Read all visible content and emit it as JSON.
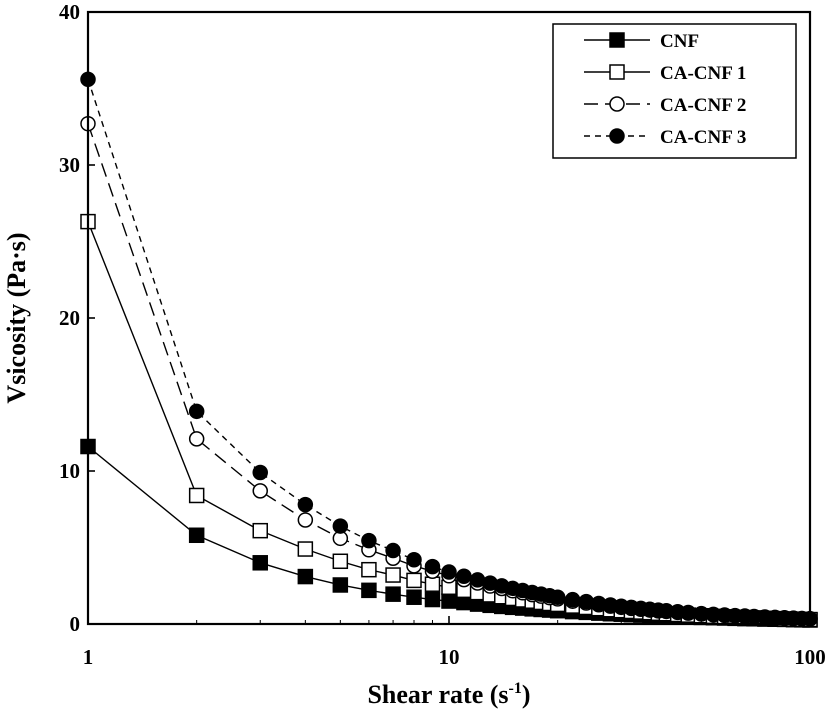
{
  "chart_data": {
    "type": "line",
    "xscale": "log",
    "xlabel": "Shear rate (s",
    "xlabel_sup": "-1",
    "xlabel_close": ")",
    "ylabel": "Vsicosity (Pa·s)",
    "xlim": [
      1,
      100
    ],
    "ylim": [
      0,
      40
    ],
    "x_ticks": [
      1,
      10,
      100
    ],
    "x_tick_labels": [
      "1",
      "10",
      "100"
    ],
    "y_ticks": [
      0,
      10,
      20,
      30,
      40
    ],
    "y_tick_labels": [
      "0",
      "10",
      "20",
      "30",
      "40"
    ],
    "legend_position": "top-right",
    "x": [
      1,
      2,
      3,
      4,
      5,
      6,
      7,
      8,
      9,
      10,
      11,
      12,
      13,
      14,
      15,
      16,
      17,
      18,
      19,
      20,
      22,
      24,
      26,
      28,
      30,
      32,
      34,
      36,
      38,
      40,
      43,
      46,
      50,
      54,
      58,
      62,
      66,
      70,
      75,
      80,
      85,
      90,
      95,
      100
    ],
    "series": [
      {
        "name": "CNF",
        "marker": "filled-square",
        "line": "solid",
        "values": [
          11.6,
          5.8,
          4.0,
          3.1,
          2.55,
          2.2,
          1.95,
          1.75,
          1.6,
          1.5,
          1.4,
          1.3,
          1.22,
          1.15,
          1.09,
          1.04,
          0.99,
          0.95,
          0.91,
          0.87,
          0.81,
          0.76,
          0.71,
          0.67,
          0.64,
          0.61,
          0.58,
          0.56,
          0.53,
          0.51,
          0.49,
          0.46,
          0.43,
          0.41,
          0.39,
          0.37,
          0.35,
          0.34,
          0.32,
          0.31,
          0.3,
          0.28,
          0.27,
          0.26
        ]
      },
      {
        "name": "CA-CNF 1",
        "marker": "open-square",
        "line": "solid",
        "values": [
          26.3,
          8.4,
          6.1,
          4.9,
          4.1,
          3.55,
          3.2,
          2.85,
          2.6,
          2.4,
          2.2,
          2.05,
          1.9,
          1.78,
          1.67,
          1.57,
          1.49,
          1.41,
          1.34,
          1.28,
          1.17,
          1.08,
          1.0,
          0.93,
          0.87,
          0.82,
          0.78,
          0.74,
          0.7,
          0.67,
          0.62,
          0.58,
          0.54,
          0.5,
          0.47,
          0.44,
          0.42,
          0.4,
          0.37,
          0.35,
          0.33,
          0.32,
          0.3,
          0.29
        ]
      },
      {
        "name": "CA-CNF 2",
        "marker": "open-circle",
        "line": "long-dash",
        "values": [
          32.7,
          12.1,
          8.7,
          6.8,
          5.6,
          4.85,
          4.3,
          3.8,
          3.45,
          3.15,
          2.9,
          2.68,
          2.48,
          2.32,
          2.17,
          2.04,
          1.92,
          1.82,
          1.72,
          1.64,
          1.49,
          1.37,
          1.26,
          1.17,
          1.09,
          1.02,
          0.96,
          0.91,
          0.86,
          0.82,
          0.76,
          0.71,
          0.65,
          0.6,
          0.56,
          0.53,
          0.5,
          0.47,
          0.44,
          0.41,
          0.39,
          0.37,
          0.35,
          0.33
        ]
      },
      {
        "name": "CA-CNF 3",
        "marker": "filled-circle",
        "line": "short-dash",
        "values": [
          35.6,
          13.9,
          9.9,
          7.8,
          6.4,
          5.45,
          4.8,
          4.2,
          3.75,
          3.4,
          3.12,
          2.88,
          2.67,
          2.49,
          2.33,
          2.19,
          2.06,
          1.95,
          1.85,
          1.75,
          1.59,
          1.46,
          1.34,
          1.24,
          1.16,
          1.09,
          1.02,
          0.96,
          0.91,
          0.87,
          0.8,
          0.75,
          0.68,
          0.63,
          0.59,
          0.55,
          0.52,
          0.49,
          0.46,
          0.43,
          0.41,
          0.38,
          0.36,
          0.35
        ]
      }
    ]
  }
}
